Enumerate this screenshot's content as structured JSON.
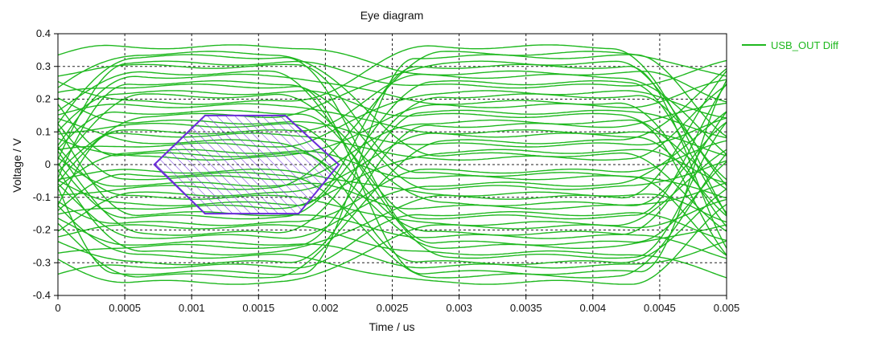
{
  "chart_data": {
    "type": "line",
    "title": "Eye diagram",
    "xlabel": "Time / us",
    "ylabel": "Voltage / V",
    "xlim": [
      0,
      0.005
    ],
    "ylim": [
      -0.4,
      0.4
    ],
    "x_ticks": [
      0,
      0.0005,
      0.001,
      0.0015,
      0.002,
      0.0025,
      0.003,
      0.0035,
      0.004,
      0.0045,
      0.005
    ],
    "x_tick_labels": [
      "0",
      "0.0005",
      "0.001",
      "0.0015",
      "0.002",
      "0.0025",
      "0.003",
      "0.0035",
      "0.004",
      "0.0045",
      "0.005"
    ],
    "y_ticks": [
      -0.4,
      -0.3,
      -0.2,
      -0.1,
      0,
      0.1,
      0.2,
      0.3,
      0.4
    ],
    "y_tick_labels": [
      "-0.4",
      "-0.3",
      "-0.2",
      "-0.1",
      "0",
      "0.1",
      "0.2",
      "0.3",
      "0.4"
    ],
    "grid": "dashed",
    "legend_position": "right",
    "series": [
      {
        "name": "USB_OUT Diff",
        "color": "#1fb81f",
        "unit_interval_start": 0,
        "crossing_times": [
          0.00225,
          0.00475
        ],
        "trace_levels": [
          0.36,
          0.34,
          0.33,
          0.31,
          0.3,
          0.28,
          0.27,
          0.25,
          0.24,
          0.22,
          0.21,
          0.19,
          0.18,
          0.16,
          0.15,
          0.13,
          0.12,
          0.1,
          0.09,
          0.07,
          0.06,
          0.04,
          0.03,
          0.02,
          -0.02,
          -0.03,
          -0.04,
          -0.06,
          -0.07,
          -0.09,
          -0.1,
          -0.12,
          -0.13,
          -0.15,
          -0.16,
          -0.18,
          -0.19,
          -0.21,
          -0.22,
          -0.24,
          -0.25,
          -0.27,
          -0.28,
          -0.3,
          -0.31,
          -0.33,
          -0.34,
          -0.36
        ]
      }
    ],
    "eye_mask": {
      "color": "#6a2bd9",
      "vertices": [
        [
          0.00072,
          0
        ],
        [
          0.0011,
          0.15
        ],
        [
          0.0017,
          0.15
        ],
        [
          0.0021,
          0
        ],
        [
          0.0018,
          -0.15
        ],
        [
          0.0011,
          -0.15
        ]
      ]
    }
  }
}
